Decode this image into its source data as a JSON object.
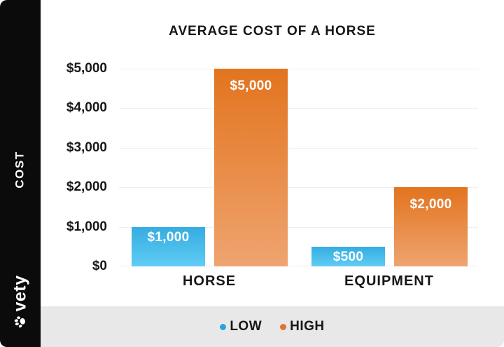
{
  "sidebar": {
    "axis_title": "COST",
    "brand": "vety"
  },
  "chart_data": {
    "type": "bar",
    "title": "AVERAGE COST OF A HORSE",
    "categories": [
      "HORSE",
      "EQUIPMENT"
    ],
    "series": [
      {
        "name": "LOW",
        "color": "#29a4db",
        "values": [
          1000,
          500
        ],
        "labels": [
          "$1,000",
          "$500"
        ]
      },
      {
        "name": "HIGH",
        "color": "#dd7533",
        "values": [
          5000,
          2000
        ],
        "labels": [
          "$5,000",
          "$2,000"
        ]
      }
    ],
    "ylabel": "COST",
    "ylim": [
      0,
      5000
    ],
    "yticks": [
      "$0",
      "$1,000",
      "$2,000",
      "$3,000",
      "$4,000",
      "$5,000"
    ],
    "grid": true,
    "legend_position": "bottom"
  }
}
